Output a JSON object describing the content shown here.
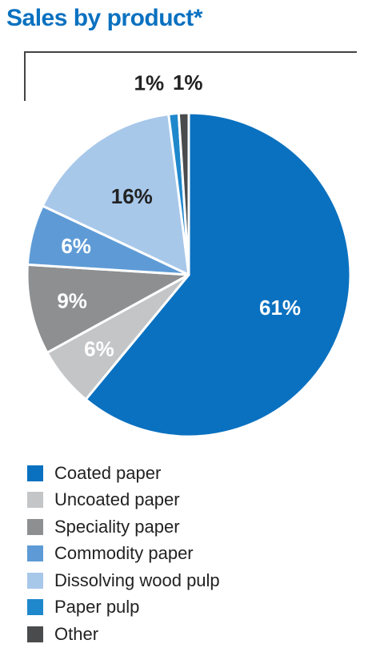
{
  "chart_data": {
    "type": "pie",
    "title": "Sales by product*",
    "categories": [
      "Coated paper",
      "Uncoated paper",
      "Speciality paper",
      "Commodity paper",
      "Dissolving wood pulp",
      "Paper pulp",
      "Other"
    ],
    "values": [
      61,
      6,
      9,
      6,
      16,
      1,
      1
    ],
    "value_labels": [
      "61%",
      "6%",
      "9%",
      "6%",
      "16%",
      "1%",
      "1%"
    ],
    "colors": [
      "#0a71c0",
      "#c4c5c7",
      "#8e8f91",
      "#5e9bd6",
      "#a8c8ea",
      "#1f88cc",
      "#4a4b4d"
    ],
    "label_colors": [
      "#ffffff",
      "#ffffff",
      "#ffffff",
      "#ffffff",
      "#222222",
      "#222222",
      "#222222"
    ],
    "legend_position": "bottom-left"
  }
}
